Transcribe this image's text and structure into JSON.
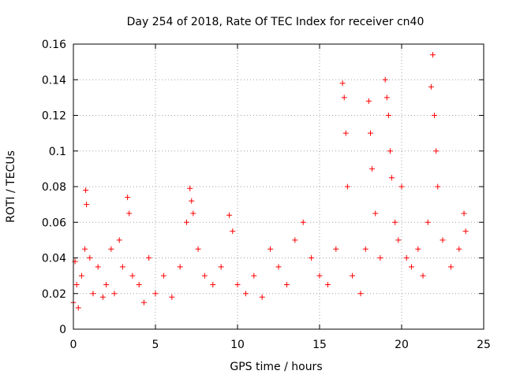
{
  "chart_data": {
    "type": "scatter",
    "title": "Day 254 of 2018, Rate Of TEC Index for receiver cn40",
    "xlabel": "GPS time / hours",
    "ylabel": "ROTI / TECUs",
    "xlim": [
      0,
      25
    ],
    "ylim": [
      0,
      0.16
    ],
    "xticks": [
      0,
      5,
      10,
      15,
      20,
      25
    ],
    "xtick_labels": [
      "0",
      "5",
      "10",
      "15",
      "20",
      "25"
    ],
    "yticks": [
      0,
      0.02,
      0.04,
      0.06,
      0.08,
      0.1,
      0.12,
      0.14,
      0.16
    ],
    "ytick_labels": [
      "0",
      "0.02",
      "0.04",
      "0.06",
      "0.08",
      "0.1",
      "0.12",
      "0.14",
      "0.16"
    ],
    "grid": true,
    "marker": "plus",
    "series": [
      {
        "name": "ROTI",
        "color": "#ff0000",
        "x": [
          0.0,
          0.1,
          0.2,
          0.3,
          0.5,
          0.7,
          0.75,
          0.8,
          1.0,
          1.2,
          1.5,
          1.8,
          2.0,
          2.3,
          2.5,
          2.8,
          3.0,
          3.3,
          3.4,
          3.6,
          4.0,
          4.3,
          4.6,
          5.0,
          5.5,
          6.0,
          6.5,
          6.9,
          7.1,
          7.2,
          7.3,
          7.6,
          8.0,
          8.5,
          9.0,
          9.5,
          9.7,
          10.0,
          10.5,
          11.0,
          11.5,
          12.0,
          12.5,
          13.0,
          13.5,
          14.0,
          14.5,
          15.0,
          15.5,
          16.0,
          16.4,
          16.5,
          16.6,
          16.7,
          17.0,
          17.5,
          17.8,
          18.0,
          18.1,
          18.2,
          18.4,
          18.7,
          19.0,
          19.1,
          19.2,
          19.3,
          19.4,
          19.6,
          19.8,
          20.0,
          20.3,
          20.6,
          21.0,
          21.3,
          21.6,
          21.8,
          21.9,
          22.0,
          22.1,
          22.2,
          22.5,
          23.0,
          23.5,
          23.8,
          23.9
        ],
        "y": [
          0.015,
          0.038,
          0.025,
          0.012,
          0.03,
          0.045,
          0.078,
          0.07,
          0.04,
          0.02,
          0.035,
          0.018,
          0.025,
          0.045,
          0.02,
          0.05,
          0.035,
          0.074,
          0.065,
          0.03,
          0.025,
          0.015,
          0.04,
          0.02,
          0.03,
          0.018,
          0.035,
          0.06,
          0.079,
          0.072,
          0.065,
          0.045,
          0.03,
          0.025,
          0.035,
          0.064,
          0.055,
          0.025,
          0.02,
          0.03,
          0.018,
          0.045,
          0.035,
          0.025,
          0.05,
          0.06,
          0.04,
          0.03,
          0.025,
          0.045,
          0.138,
          0.13,
          0.11,
          0.08,
          0.03,
          0.02,
          0.045,
          0.128,
          0.11,
          0.09,
          0.065,
          0.04,
          0.14,
          0.13,
          0.12,
          0.1,
          0.085,
          0.06,
          0.05,
          0.08,
          0.04,
          0.035,
          0.045,
          0.03,
          0.06,
          0.136,
          0.154,
          0.12,
          0.1,
          0.08,
          0.05,
          0.035,
          0.045,
          0.065,
          0.055
        ]
      }
    ]
  }
}
